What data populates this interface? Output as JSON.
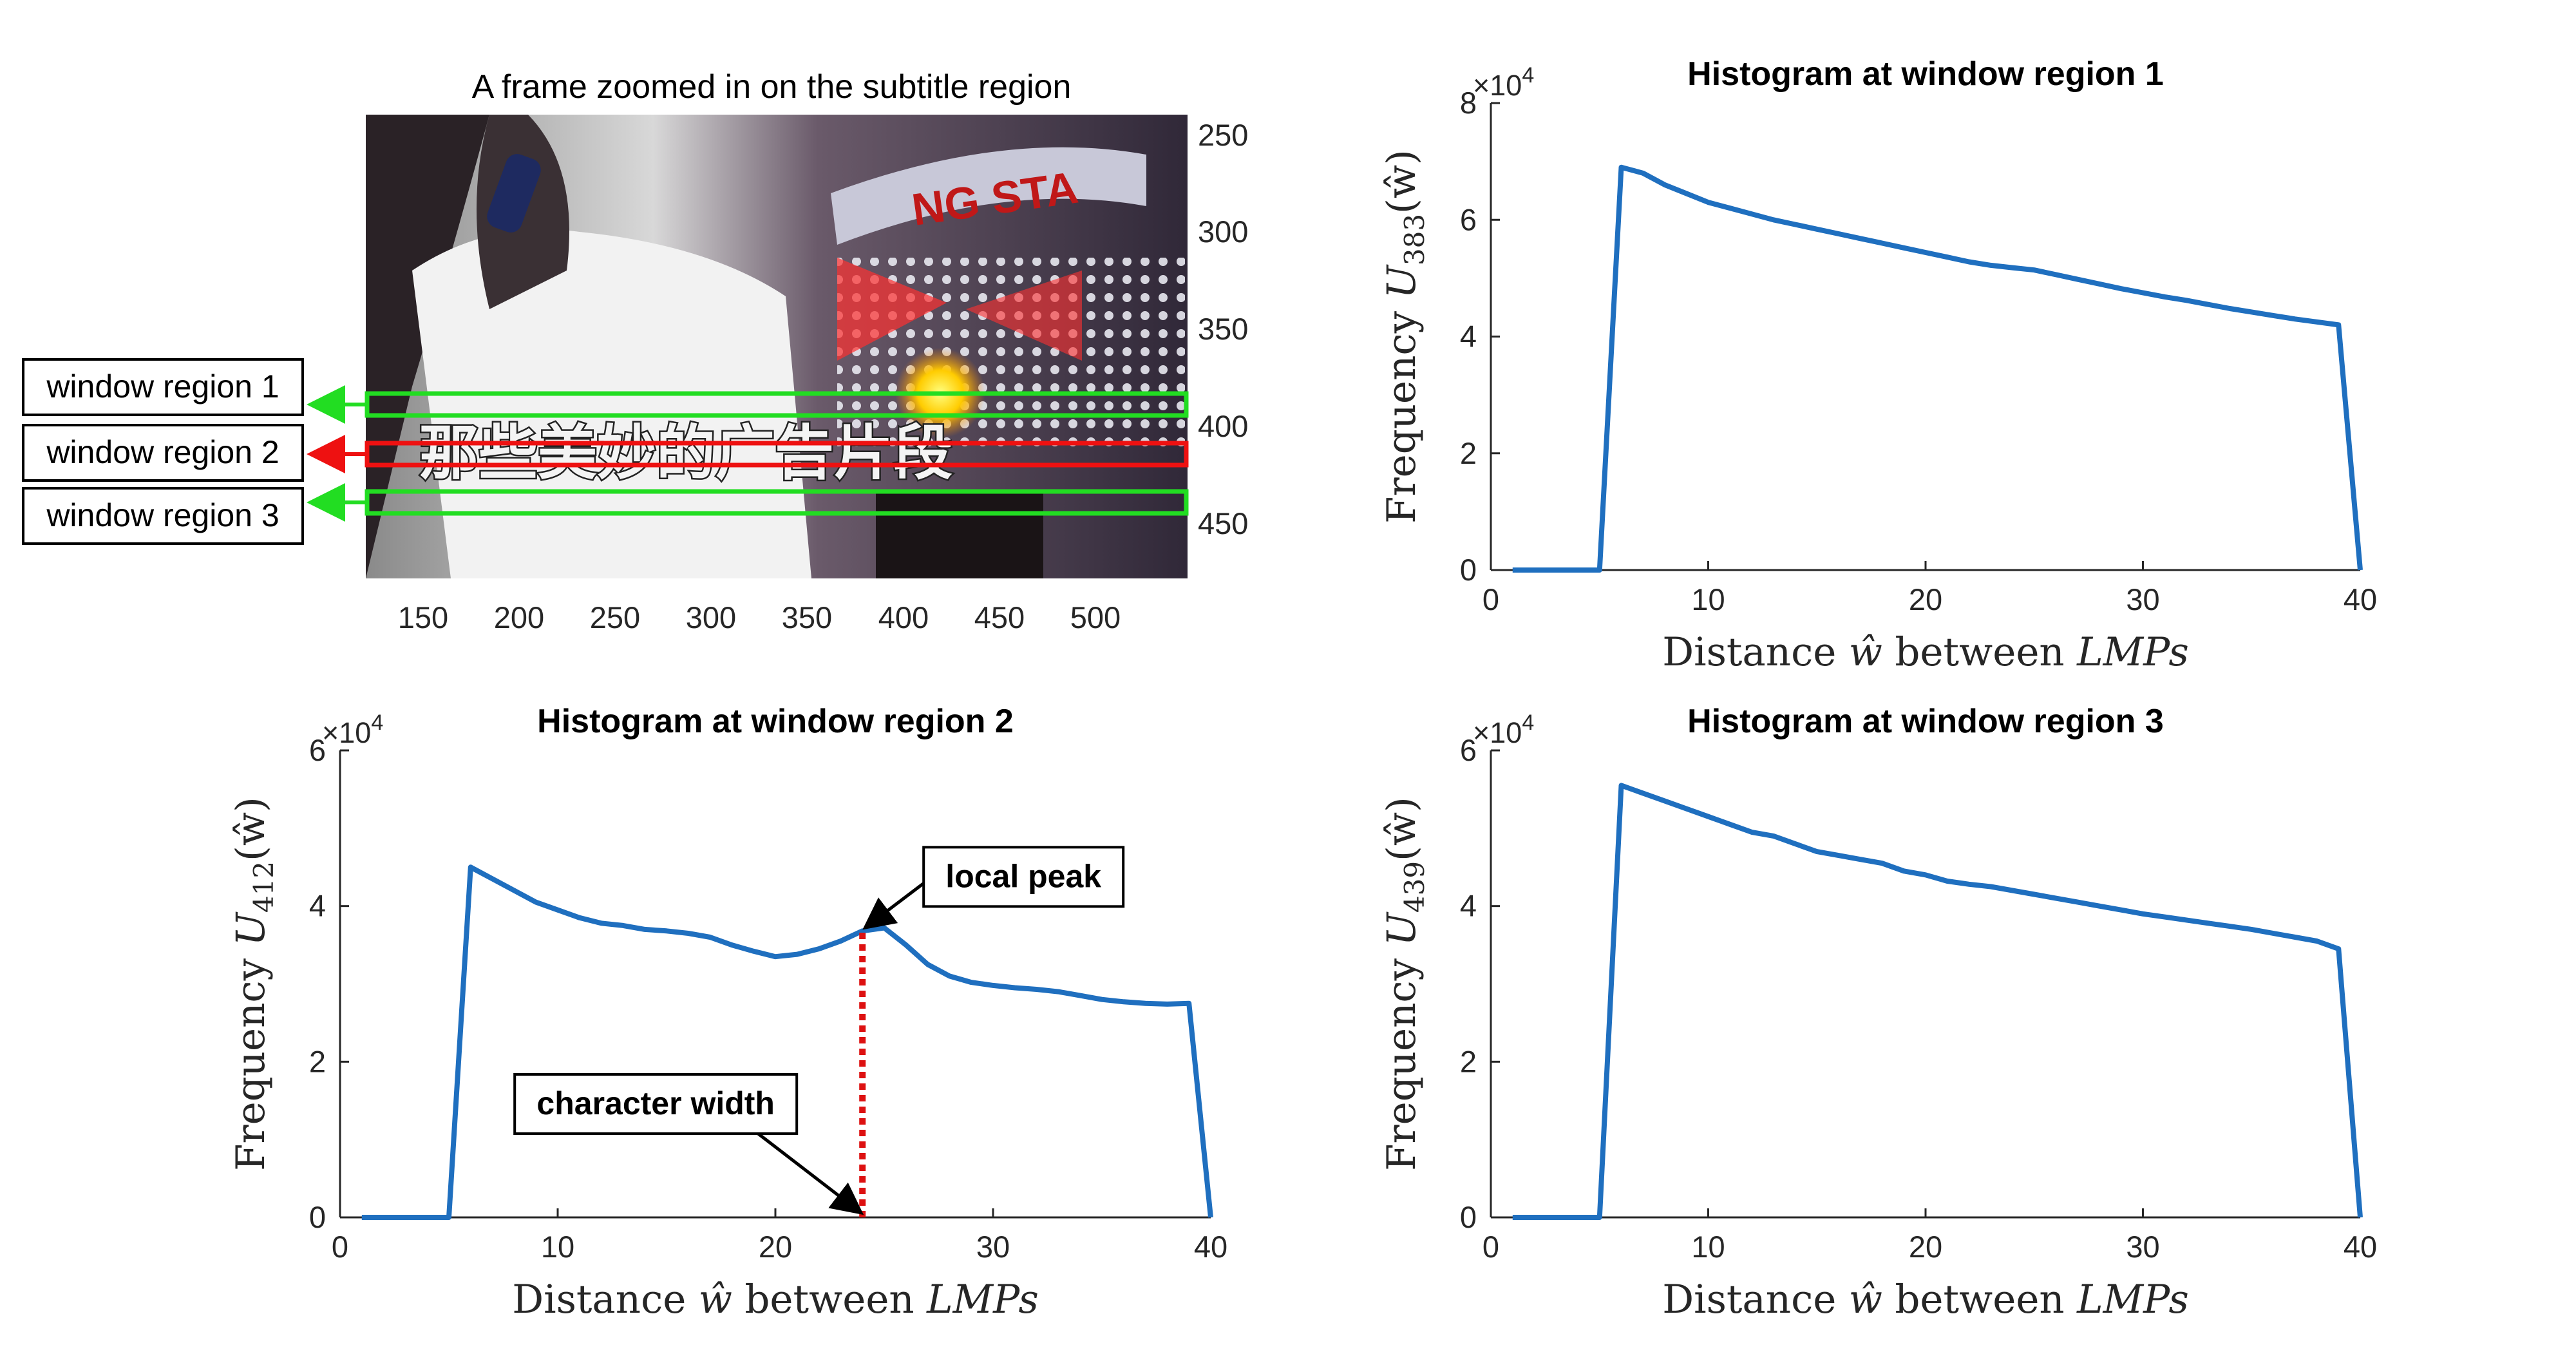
{
  "figure": {
    "frame_panel": {
      "title": "A frame zoomed in on the subtitle region",
      "subtitle_text": "那些美妙的广告片段",
      "x_ticks": [
        "150",
        "200",
        "250",
        "300",
        "350",
        "400",
        "450",
        "500"
      ],
      "y_ticks": [
        "250",
        "300",
        "350",
        "400",
        "450"
      ],
      "regions": [
        {
          "label": "window region 1",
          "color": "#22dd22"
        },
        {
          "label": "window region 2",
          "color": "#ee1111"
        },
        {
          "label": "window region 3",
          "color": "#22dd22"
        }
      ]
    },
    "annotations": {
      "local_peak": "local peak",
      "character_width": "character width",
      "exponent_base": "×10",
      "exponent_power": "4"
    }
  },
  "chart_data": [
    {
      "type": "line",
      "title": "Histogram at window region 1",
      "xlabel_prefix": "Distance",
      "xlabel_symbol": "ŵ",
      "xlabel_mid": "between",
      "xlabel_math": "LMPs",
      "ylabel_prefix": "Frequency",
      "ylabel_symbol": "U",
      "ylabel_subscript": "383",
      "ylabel_arg": "(ŵ)",
      "x_ticks": [
        "0",
        "10",
        "20",
        "30",
        "40"
      ],
      "y_ticks": [
        "0",
        "2",
        "4",
        "6",
        "8"
      ],
      "xlim": [
        0,
        40
      ],
      "ylim": [
        0,
        8
      ],
      "y_scale_note": "×10^4",
      "series_color": "#1f6fbf",
      "x": [
        1,
        2,
        3,
        4,
        5,
        6,
        7,
        8,
        9,
        10,
        11,
        12,
        13,
        14,
        15,
        16,
        17,
        18,
        19,
        20,
        21,
        22,
        23,
        24,
        25,
        26,
        27,
        28,
        29,
        30,
        31,
        32,
        33,
        34,
        35,
        36,
        37,
        38,
        39,
        40
      ],
      "y": [
        0,
        0,
        0,
        0,
        0,
        6.9,
        6.8,
        6.6,
        6.45,
        6.3,
        6.2,
        6.1,
        6.0,
        5.92,
        5.84,
        5.76,
        5.68,
        5.6,
        5.52,
        5.44,
        5.36,
        5.28,
        5.22,
        5.18,
        5.14,
        5.06,
        4.98,
        4.9,
        4.82,
        4.75,
        4.68,
        4.62,
        4.55,
        4.48,
        4.42,
        4.36,
        4.3,
        4.25,
        4.2,
        0
      ]
    },
    {
      "type": "line",
      "title": "Histogram at window region 2",
      "xlabel_prefix": "Distance",
      "xlabel_symbol": "ŵ",
      "xlabel_mid": "between",
      "xlabel_math": "LMPs",
      "ylabel_prefix": "Frequency",
      "ylabel_symbol": "U",
      "ylabel_subscript": "412",
      "ylabel_arg": "(ŵ)",
      "x_ticks": [
        "0",
        "10",
        "20",
        "30",
        "40"
      ],
      "y_ticks": [
        "0",
        "2",
        "4",
        "6"
      ],
      "xlim": [
        0,
        40
      ],
      "ylim": [
        0,
        6
      ],
      "y_scale_note": "×10^4",
      "series_color": "#1f6fbf",
      "marker_x": 24,
      "x": [
        1,
        2,
        3,
        4,
        5,
        6,
        7,
        8,
        9,
        10,
        11,
        12,
        13,
        14,
        15,
        16,
        17,
        18,
        19,
        20,
        21,
        22,
        23,
        24,
        25,
        26,
        27,
        28,
        29,
        30,
        31,
        32,
        33,
        34,
        35,
        36,
        37,
        38,
        39,
        40
      ],
      "y": [
        0,
        0,
        0,
        0,
        0,
        4.5,
        4.35,
        4.2,
        4.05,
        3.95,
        3.85,
        3.78,
        3.75,
        3.7,
        3.68,
        3.65,
        3.6,
        3.5,
        3.42,
        3.35,
        3.38,
        3.45,
        3.55,
        3.68,
        3.72,
        3.5,
        3.25,
        3.1,
        3.02,
        2.98,
        2.95,
        2.93,
        2.9,
        2.85,
        2.8,
        2.77,
        2.75,
        2.74,
        2.75,
        0
      ]
    },
    {
      "type": "line",
      "title": "Histogram at window region 3",
      "xlabel_prefix": "Distance",
      "xlabel_symbol": "ŵ",
      "xlabel_mid": "between",
      "xlabel_math": "LMPs",
      "ylabel_prefix": "Frequency",
      "ylabel_symbol": "U",
      "ylabel_subscript": "439",
      "ylabel_arg": "(ŵ)",
      "x_ticks": [
        "0",
        "10",
        "20",
        "30",
        "40"
      ],
      "y_ticks": [
        "0",
        "2",
        "4",
        "6"
      ],
      "xlim": [
        0,
        40
      ],
      "ylim": [
        0,
        6
      ],
      "y_scale_note": "×10^4",
      "series_color": "#1f6fbf",
      "x": [
        1,
        2,
        3,
        4,
        5,
        6,
        7,
        8,
        9,
        10,
        11,
        12,
        13,
        14,
        15,
        16,
        17,
        18,
        19,
        20,
        21,
        22,
        23,
        24,
        25,
        26,
        27,
        28,
        29,
        30,
        31,
        32,
        33,
        34,
        35,
        36,
        37,
        38,
        39,
        40
      ],
      "y": [
        0,
        0,
        0,
        0,
        0,
        5.55,
        5.45,
        5.35,
        5.25,
        5.15,
        5.05,
        4.95,
        4.9,
        4.8,
        4.7,
        4.65,
        4.6,
        4.55,
        4.45,
        4.4,
        4.32,
        4.28,
        4.25,
        4.2,
        4.15,
        4.1,
        4.05,
        4.0,
        3.95,
        3.9,
        3.86,
        3.82,
        3.78,
        3.74,
        3.7,
        3.65,
        3.6,
        3.55,
        3.45,
        0
      ]
    }
  ]
}
